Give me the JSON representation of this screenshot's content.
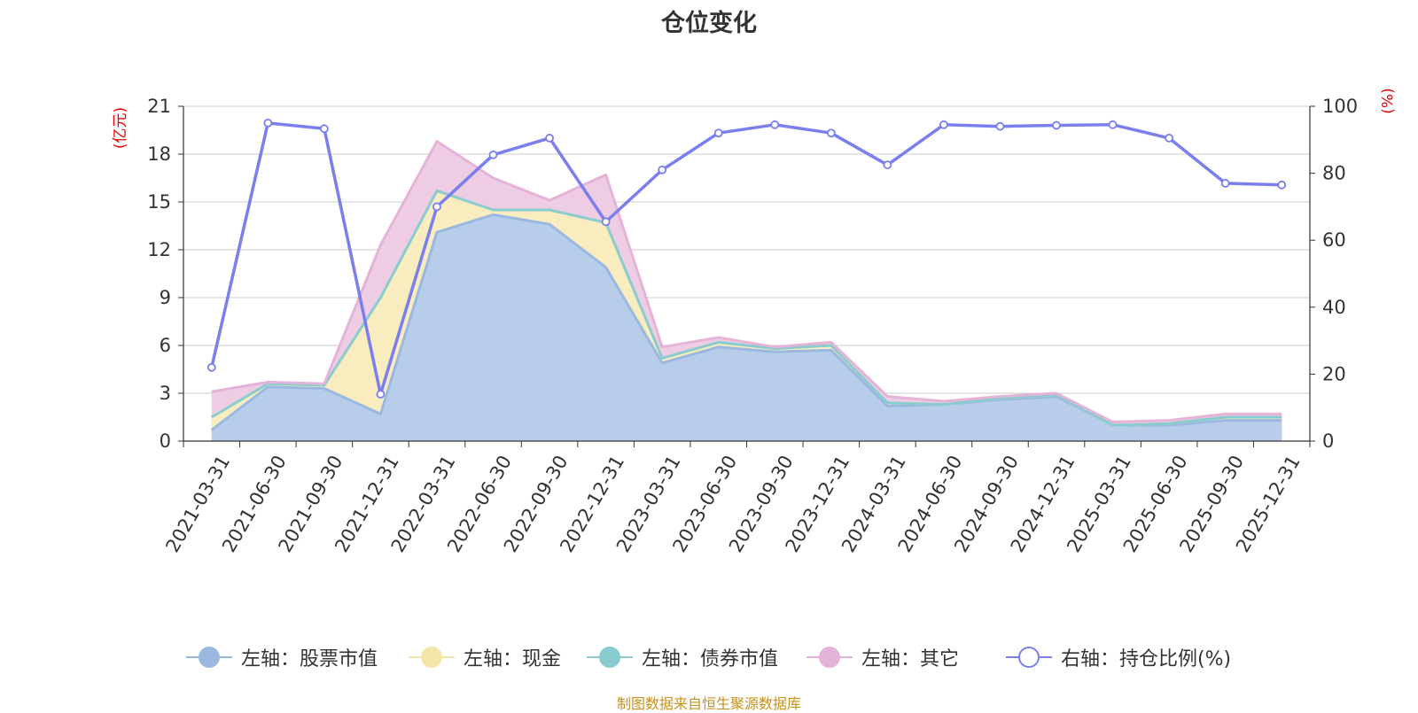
{
  "chart_data": {
    "type": "area",
    "title": "仓位变化",
    "left_axis_unit": "(亿元)",
    "right_axis_unit": "(%)",
    "x": [
      "2021-03-31",
      "2021-06-30",
      "2021-09-30",
      "2021-12-31",
      "2022-03-31",
      "2022-06-30",
      "2022-09-30",
      "2022-12-31",
      "2023-03-31",
      "2023-06-30",
      "2023-09-30",
      "2023-12-31",
      "2024-03-31",
      "2024-06-30",
      "2024-09-30",
      "2024-12-31",
      "2025-03-31",
      "2025-06-30",
      "2025-09-30",
      "2025-12-31"
    ],
    "left_ylim": [
      0,
      21
    ],
    "left_yticks": [
      0,
      3,
      6,
      9,
      12,
      15,
      18,
      21
    ],
    "right_ylim": [
      0,
      100
    ],
    "right_yticks": [
      0,
      20,
      40,
      60,
      80,
      100
    ],
    "grid": true,
    "legend_position": "bottom",
    "series": [
      {
        "name": "左轴：股票市值",
        "axis": "left",
        "color": "#9ab8e0",
        "fill": "#b7cde9",
        "values": [
          0.7,
          3.4,
          3.3,
          1.7,
          13.1,
          14.2,
          13.6,
          10.9,
          4.9,
          5.9,
          5.6,
          5.7,
          2.2,
          2.3,
          2.6,
          2.8,
          1.0,
          1.0,
          1.3,
          1.3
        ]
      },
      {
        "name": "左轴：现金",
        "axis": "left",
        "color": "#f5e6a8",
        "fill": "#f9edbf",
        "values": [
          0.8,
          0.2,
          0.2,
          7.3,
          2.6,
          0.3,
          0.9,
          2.8,
          0.3,
          0.3,
          0.2,
          0.3,
          0.2,
          0.0,
          0.1,
          0.1,
          0.0,
          0.1,
          0.2,
          0.2
        ]
      },
      {
        "name": "左轴：债券市值",
        "axis": "left",
        "color": "#88ccd0",
        "fill": "#a8dcdf",
        "values": [
          0,
          0,
          0,
          0,
          0,
          0,
          0,
          0,
          0,
          0,
          0,
          0,
          0,
          0,
          0,
          0,
          0,
          0,
          0,
          0
        ]
      },
      {
        "name": "左轴：其它",
        "axis": "left",
        "color": "#e5b3d8",
        "fill": "#eecde4",
        "values": [
          1.6,
          0.1,
          0.1,
          3.3,
          3.1,
          2.0,
          0.6,
          3.0,
          0.7,
          0.3,
          0.1,
          0.2,
          0.4,
          0.2,
          0.1,
          0.1,
          0.2,
          0.2,
          0.2,
          0.2
        ]
      },
      {
        "name": "右轴：持仓比例(%)",
        "axis": "right",
        "color": "#7b7fee",
        "values": [
          22,
          95,
          93.3,
          14,
          70,
          85.5,
          90.5,
          65.5,
          81,
          92,
          94.5,
          92,
          82.5,
          94.5,
          94,
          94.3,
          94.5,
          90.5,
          77,
          76.5
        ]
      }
    ],
    "footer_note": "制图数据来自恒生聚源数据库"
  }
}
